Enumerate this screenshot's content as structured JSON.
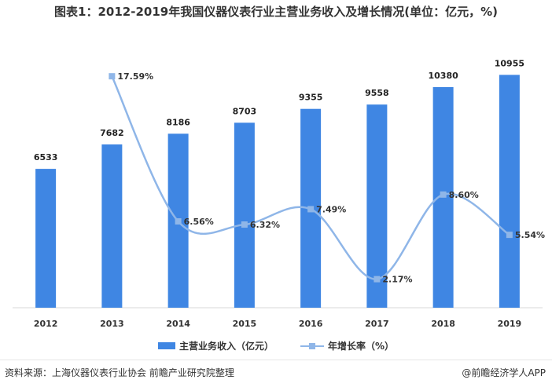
{
  "title": "图表1：2012-2019年我国仪器仪表行业主营业务收入及增长情况(单位：亿元，%)",
  "source": "资料来源：上海仪器仪表行业协会 前瞻产业研究院整理",
  "brand": "@前瞻经济学人APP",
  "colors": {
    "bar": "#3f86e3",
    "line": "#8fb6e8",
    "axis": "#d9d9d9"
  },
  "legend": [
    {
      "label": "主营业务收入（亿元）",
      "kind": "bar"
    },
    {
      "label": "年增长率（%）",
      "kind": "line"
    }
  ],
  "chart_data": {
    "type": "bar",
    "categories": [
      "2012",
      "2013",
      "2014",
      "2015",
      "2016",
      "2017",
      "2018",
      "2019"
    ],
    "series": [
      {
        "name": "主营业务收入（亿元）",
        "type": "bar",
        "values": [
          6533,
          7682,
          8186,
          8703,
          9355,
          9558,
          10380,
          10955
        ],
        "labels": [
          "6533",
          "7682",
          "8186",
          "8703",
          "9355",
          "9558",
          "10380",
          "10955"
        ]
      },
      {
        "name": "年增长率（%）",
        "type": "line",
        "values": [
          null,
          17.59,
          6.56,
          6.32,
          7.49,
          2.17,
          8.6,
          5.54
        ],
        "labels": [
          "",
          "17.59%",
          "6.56%",
          "6.32%",
          "7.49%",
          "2.17%",
          "8.60%",
          "5.54%"
        ]
      }
    ],
    "ylim": [
      0,
      13000
    ],
    "y2lim": [
      0,
      21
    ],
    "grid": false,
    "legend_position": "bottom"
  }
}
